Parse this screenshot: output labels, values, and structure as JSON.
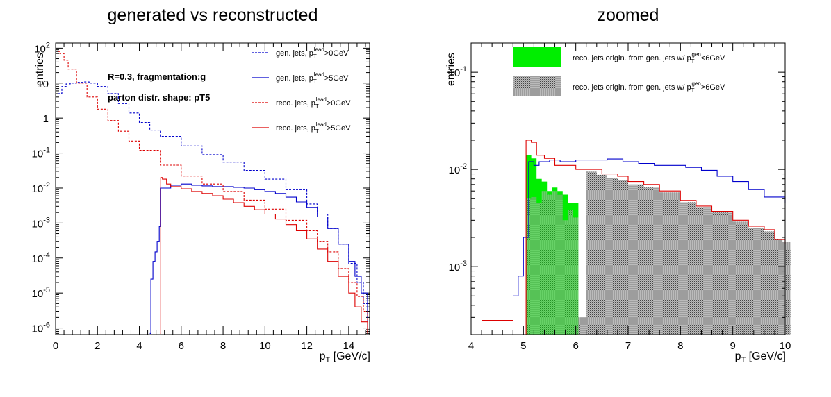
{
  "chart_data": [
    {
      "type": "line",
      "title": "generated vs reconstructed",
      "xlabel": "p_T [GeV/c]",
      "ylabel": "entries",
      "xlim": [
        0,
        15
      ],
      "ylim": [
        6.5e-07,
        140
      ],
      "yscale": "log",
      "x_ticks": [
        0,
        2,
        4,
        6,
        8,
        10,
        12,
        14
      ],
      "y_ticks": [
        {
          "v": 1e-06,
          "base": "10",
          "exp": "-6"
        },
        {
          "v": 1e-05,
          "base": "10",
          "exp": "-5"
        },
        {
          "v": 0.0001,
          "base": "10",
          "exp": "-4"
        },
        {
          "v": 0.001,
          "base": "10",
          "exp": "-3"
        },
        {
          "v": 0.01,
          "base": "10",
          "exp": "-2"
        },
        {
          "v": 0.1,
          "base": "10",
          "exp": "-1"
        },
        {
          "v": 1,
          "base": "1",
          "exp": ""
        },
        {
          "v": 10,
          "base": "10",
          "exp": ""
        },
        {
          "v": 100,
          "base": "10",
          "exp": "2"
        }
      ],
      "annotations": [
        "R=0.3, fragmentation:g",
        "parton distr. shape: pT5"
      ],
      "legend_position": "top-right",
      "series": [
        {
          "name": "gen. jets, p_T^lead>0GeV",
          "label_main": "gen. jets, p",
          "label_sub": "T",
          "label_sup": "lead",
          "label_tail": ">0GeV",
          "color": "#0000cc",
          "dash": "3,2",
          "x": [
            0.1,
            0.3,
            0.5,
            0.7,
            1.0,
            1.3,
            1.6,
            2.0,
            2.5,
            3.0,
            3.5,
            4.0,
            4.5,
            5.0,
            6.0,
            7.0,
            8.0,
            9.0,
            10.0,
            11.0,
            12.0,
            12.5,
            13.0,
            13.5,
            14.0,
            14.4,
            14.7,
            14.9
          ],
          "y": [
            5,
            8,
            9.5,
            10,
            10.5,
            10.8,
            10,
            8,
            5,
            2.6,
            1.4,
            0.75,
            0.45,
            0.3,
            0.16,
            0.09,
            0.055,
            0.032,
            0.018,
            0.009,
            0.0035,
            0.0018,
            0.0007,
            0.00025,
            7e-05,
            2e-05,
            5e-06,
            1e-06
          ]
        },
        {
          "name": "gen. jets, p_T^lead>5GeV",
          "label_main": "gen. jets, p",
          "label_sub": "T",
          "label_sup": "lead",
          "label_tail": ">5GeV",
          "color": "#0000cc",
          "dash": "",
          "x": [
            4.5,
            4.55,
            4.65,
            4.75,
            4.85,
            4.95,
            5.0,
            5.5,
            6.0,
            6.5,
            7.0,
            7.5,
            8.0,
            8.5,
            9.0,
            9.5,
            10.0,
            10.5,
            11.0,
            11.5,
            12.0,
            12.5,
            13.0,
            13.5,
            14.0,
            14.3,
            14.6,
            14.9
          ],
          "y": [
            7e-07,
            2.5e-05,
            8e-05,
            0.00015,
            0.0003,
            0.0008,
            0.01,
            0.012,
            0.013,
            0.012,
            0.0115,
            0.011,
            0.011,
            0.0105,
            0.01,
            0.009,
            0.008,
            0.007,
            0.0055,
            0.004,
            0.0028,
            0.0015,
            0.0007,
            0.00025,
            8e-05,
            3e-05,
            1e-05,
            2e-06
          ]
        },
        {
          "name": "reco. jets, p_T^lead>0GeV",
          "label_main": "reco. jets, p",
          "label_sub": "T",
          "label_sup": "lead",
          "label_tail": ">0GeV",
          "color": "#dd0000",
          "dash": "3,2",
          "x": [
            0.1,
            0.2,
            0.4,
            0.6,
            1.0,
            1.5,
            2.0,
            2.5,
            3.0,
            3.5,
            4.0,
            5.0,
            6.0,
            7.0,
            8.0,
            9.0,
            10.0,
            11.0,
            12.0,
            12.5,
            13.0,
            13.5,
            14.0,
            14.4,
            14.7,
            14.9
          ],
          "y": [
            80,
            70,
            45,
            25,
            10,
            4,
            1.8,
            0.85,
            0.42,
            0.22,
            0.12,
            0.045,
            0.022,
            0.013,
            0.008,
            0.0045,
            0.0025,
            0.0012,
            0.0006,
            0.0003,
            0.00015,
            5e-05,
            2e-05,
            8e-06,
            3e-06,
            8e-07
          ]
        },
        {
          "name": "reco. jets, p_T^lead>5GeV",
          "label_main": "reco. jets, p",
          "label_sub": "T",
          "label_sup": "lead",
          "label_tail": ">5GeV",
          "color": "#dd0000",
          "dash": "",
          "x": [
            5.0,
            5.02,
            5.1,
            5.3,
            5.5,
            6.0,
            6.5,
            7.0,
            7.5,
            8.0,
            8.5,
            9.0,
            9.5,
            10.0,
            10.5,
            11.0,
            11.5,
            12.0,
            12.5,
            13.0,
            13.5,
            14.0,
            14.3,
            14.6,
            14.9
          ],
          "y": [
            7e-07,
            0.02,
            0.018,
            0.013,
            0.011,
            0.0095,
            0.008,
            0.007,
            0.006,
            0.0048,
            0.0038,
            0.003,
            0.0024,
            0.0018,
            0.0013,
            0.0009,
            0.0006,
            0.00035,
            0.00018,
            8e-05,
            3e-05,
            1e-05,
            4e-06,
            1.5e-06,
            7e-07
          ]
        }
      ]
    },
    {
      "type": "bar",
      "title": "zoomed",
      "xlabel": "p_T [GeV/c]",
      "ylabel": "entries",
      "xlim": [
        4,
        10
      ],
      "ylim": [
        0.0002,
        0.2
      ],
      "yscale": "log",
      "x_ticks": [
        4,
        5,
        6,
        7,
        8,
        9,
        10
      ],
      "y_ticks": [
        {
          "v": 0.001,
          "base": "10",
          "exp": "-3"
        },
        {
          "v": 0.01,
          "base": "10",
          "exp": "-2"
        },
        {
          "v": 0.1,
          "base": "10",
          "exp": "-1"
        }
      ],
      "legend_position": "top",
      "legend": [
        {
          "label_main": "reco. jets origin. from gen. jets w/ p",
          "label_sub": "T",
          "label_sup": "gen",
          "label_tail": "<6GeV",
          "fill": "#00ee00",
          "hatch": false
        },
        {
          "label_main": "reco. jets origin. from gen. jets w/ p",
          "label_sub": "T",
          "label_sup": "gen",
          "label_tail": ">6GeV",
          "fill": "#888888",
          "hatch": true
        }
      ],
      "series": [
        {
          "name": "gen. jets, p_T^lead>5GeV",
          "color": "#0000cc",
          "x": [
            4.8,
            4.9,
            5.0,
            5.1,
            5.2,
            5.3,
            5.5,
            5.7,
            6.0,
            6.3,
            6.6,
            6.9,
            7.2,
            7.5,
            7.8,
            8.1,
            8.4,
            8.7,
            9.0,
            9.3,
            9.6,
            10.0
          ],
          "y": [
            0.0005,
            0.0008,
            0.002,
            0.012,
            0.011,
            0.012,
            0.0125,
            0.012,
            0.0125,
            0.0125,
            0.0128,
            0.012,
            0.0115,
            0.011,
            0.011,
            0.0105,
            0.0098,
            0.0085,
            0.0075,
            0.0062,
            0.0052,
            0.0045
          ]
        },
        {
          "name": "reco. jets, p_T^lead>5GeV",
          "color": "#dd0000",
          "x": [
            5.0,
            5.05,
            5.15,
            5.25,
            5.4,
            5.6,
            5.8,
            6.0,
            6.2,
            6.5,
            6.8,
            7.0,
            7.3,
            7.6,
            8.0,
            8.3,
            8.6,
            9.0,
            9.3,
            9.6,
            9.8,
            10.0
          ],
          "y": [
            0.0002,
            0.02,
            0.019,
            0.014,
            0.013,
            0.011,
            0.011,
            0.01,
            0.01,
            0.009,
            0.0085,
            0.0075,
            0.007,
            0.006,
            0.0048,
            0.0042,
            0.0037,
            0.003,
            0.0026,
            0.0024,
            0.0019,
            0.0017
          ]
        },
        {
          "name": "reco. jets origin. from gen. jets w/ p_T^gen<6GeV",
          "color": "#00ee00",
          "x": [
            5.05,
            5.15,
            5.25,
            5.35,
            5.45,
            5.55,
            5.65,
            5.75,
            5.85,
            5.95
          ],
          "y": [
            0.014,
            0.013,
            0.008,
            0.0075,
            0.006,
            0.0065,
            0.006,
            0.0055,
            0.0045,
            0.0045
          ]
        },
        {
          "name": "reco. jets origin. from gen. jets w/ p_T^gen>6GeV",
          "color": "#888888",
          "x": [
            5.05,
            5.15,
            5.25,
            5.35,
            5.45,
            5.55,
            5.65,
            5.75,
            5.85,
            5.95,
            6.05,
            6.2,
            6.4,
            6.6,
            6.8,
            7.0,
            7.3,
            7.6,
            8.0,
            8.3,
            8.6,
            9.0,
            9.3,
            9.6,
            9.8,
            9.95
          ],
          "y": [
            0.005,
            0.0052,
            0.0045,
            0.006,
            0.0055,
            0.006,
            0.0055,
            0.003,
            0.0038,
            0.0032,
            0.0003,
            0.0095,
            0.0088,
            0.0082,
            0.0078,
            0.007,
            0.0065,
            0.0058,
            0.0046,
            0.0041,
            0.0036,
            0.0029,
            0.0025,
            0.0023,
            0.0019,
            0.0018
          ]
        }
      ]
    }
  ]
}
